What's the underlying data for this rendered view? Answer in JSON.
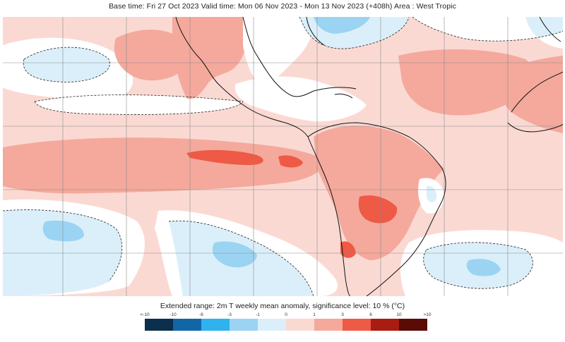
{
  "title": "Base time: Fri 27 Oct 2023 Valid time: Mon 06 Nov 2023 - Mon 13 Nov 2023 (+408h) Area : West Tropic",
  "caption": "Extended range: 2m T weekly mean anomaly, significance level: 10 % (°C)",
  "legend": {
    "ticks": [
      "<-10",
      "-10",
      "-6",
      "-3",
      "-1",
      "0",
      "1",
      "3",
      "6",
      "10",
      ">10"
    ],
    "colors": [
      "#0b2f4d",
      "#1167a6",
      "#2fb2ee",
      "#9bd4f3",
      "#dbeffa",
      "#fbd9d3",
      "#f4a99c",
      "#ee5a45",
      "#a81c11",
      "#5a0b05"
    ]
  },
  "palette": {
    "sea_neutral": "#ffffff",
    "pos_weak": "#fbd9d3",
    "pos_mod": "#f4a99c",
    "pos_strong": "#ee5a45",
    "neg_weak": "#dbeffa",
    "neg_mod": "#9bd4f3",
    "grid": "#8a8a8a",
    "coast": "#111111"
  }
}
